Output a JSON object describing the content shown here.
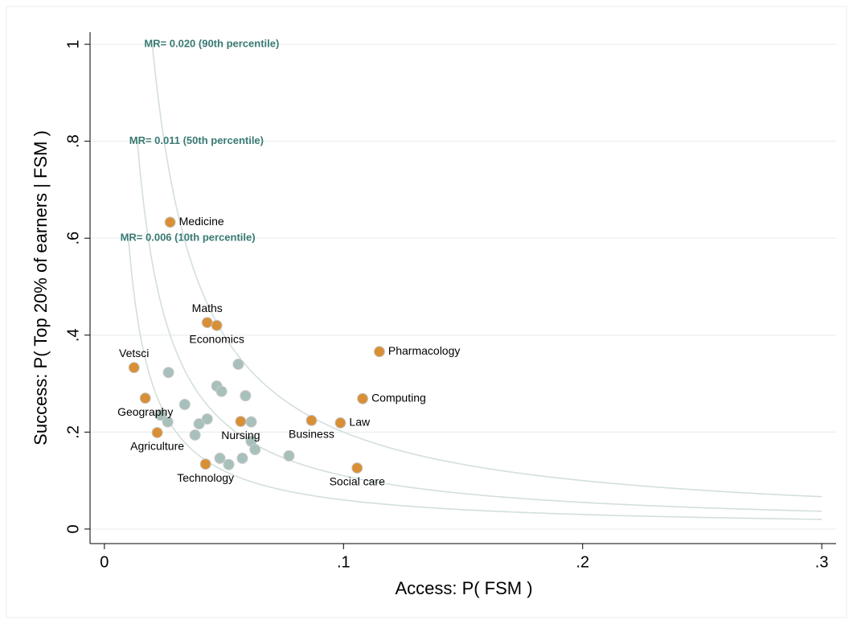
{
  "chart_data": {
    "type": "scatter",
    "x_label": "Access:  P( FSM )",
    "y_label": "Success:  P( Top 20% of earners | FSM )",
    "xlim": [
      -0.006,
      0.306
    ],
    "ylim": [
      -0.03,
      1.025
    ],
    "xticks": [
      0,
      {
        "value": 0.1,
        "label": ".1"
      },
      {
        "value": 0.2,
        "label": ".2"
      },
      {
        "value": 0.3,
        "label": ".3"
      }
    ],
    "yticks": [
      0,
      {
        "value": 0.2,
        "label": ".2"
      },
      {
        "value": 0.4,
        "label": ".4"
      },
      {
        "value": 0.6,
        "label": ".6"
      },
      {
        "value": 0.8,
        "label": ".8"
      },
      1
    ],
    "grid": true,
    "curves": [
      {
        "label": "MR= 0.020 (90th percentile)",
        "mr": 0.02,
        "x": [
          0.02,
          0.3
        ],
        "color": "#d3dfdc",
        "label_color": "#3a7a74"
      },
      {
        "label": "MR= 0.011 (50th percentile)",
        "mr": 0.011,
        "x": [
          0.01375,
          0.3
        ],
        "color": "#d3dfdc",
        "label_color": "#3a7a74"
      },
      {
        "label": "MR= 0.006 (10th percentile)",
        "mr": 0.006,
        "x": [
          0.01,
          0.3
        ],
        "color": "#d3dfdc",
        "label_color": "#3a7a74"
      }
    ],
    "series": [
      {
        "color": "#a8c0bb",
        "x": [
          0.0268,
          0.056,
          0.047,
          0.049,
          0.059,
          0.0336,
          0.0235,
          0.0265,
          0.0396,
          0.043,
          0.0614,
          0.0379,
          0.0614,
          0.063,
          0.0772,
          0.0483,
          0.0577,
          0.052
        ],
        "y": [
          0.323,
          0.34,
          0.295,
          0.284,
          0.275,
          0.257,
          0.235,
          0.221,
          0.217,
          0.227,
          0.221,
          0.194,
          0.181,
          0.164,
          0.151,
          0.146,
          0.146,
          0.133
        ]
      },
      {
        "color": "#d98f35",
        "x": [
          0.0275,
          0.043,
          0.047,
          0.115,
          0.0124,
          0.0171,
          0.108,
          0.0866,
          0.0987,
          0.057,
          0.0221,
          0.0423,
          0.1057
        ],
        "y": [
          0.633,
          0.426,
          0.42,
          0.366,
          0.333,
          0.27,
          0.269,
          0.224,
          0.219,
          0.222,
          0.199,
          0.134,
          0.126
        ],
        "point_labels": [
          "Medicine",
          "Maths",
          "Economics",
          "Pharmacology",
          "Vetsci",
          "Geography",
          "Computing",
          "Business",
          "Law",
          "Nursing",
          "Agriculture",
          "Technology",
          "Social care"
        ]
      }
    ]
  }
}
